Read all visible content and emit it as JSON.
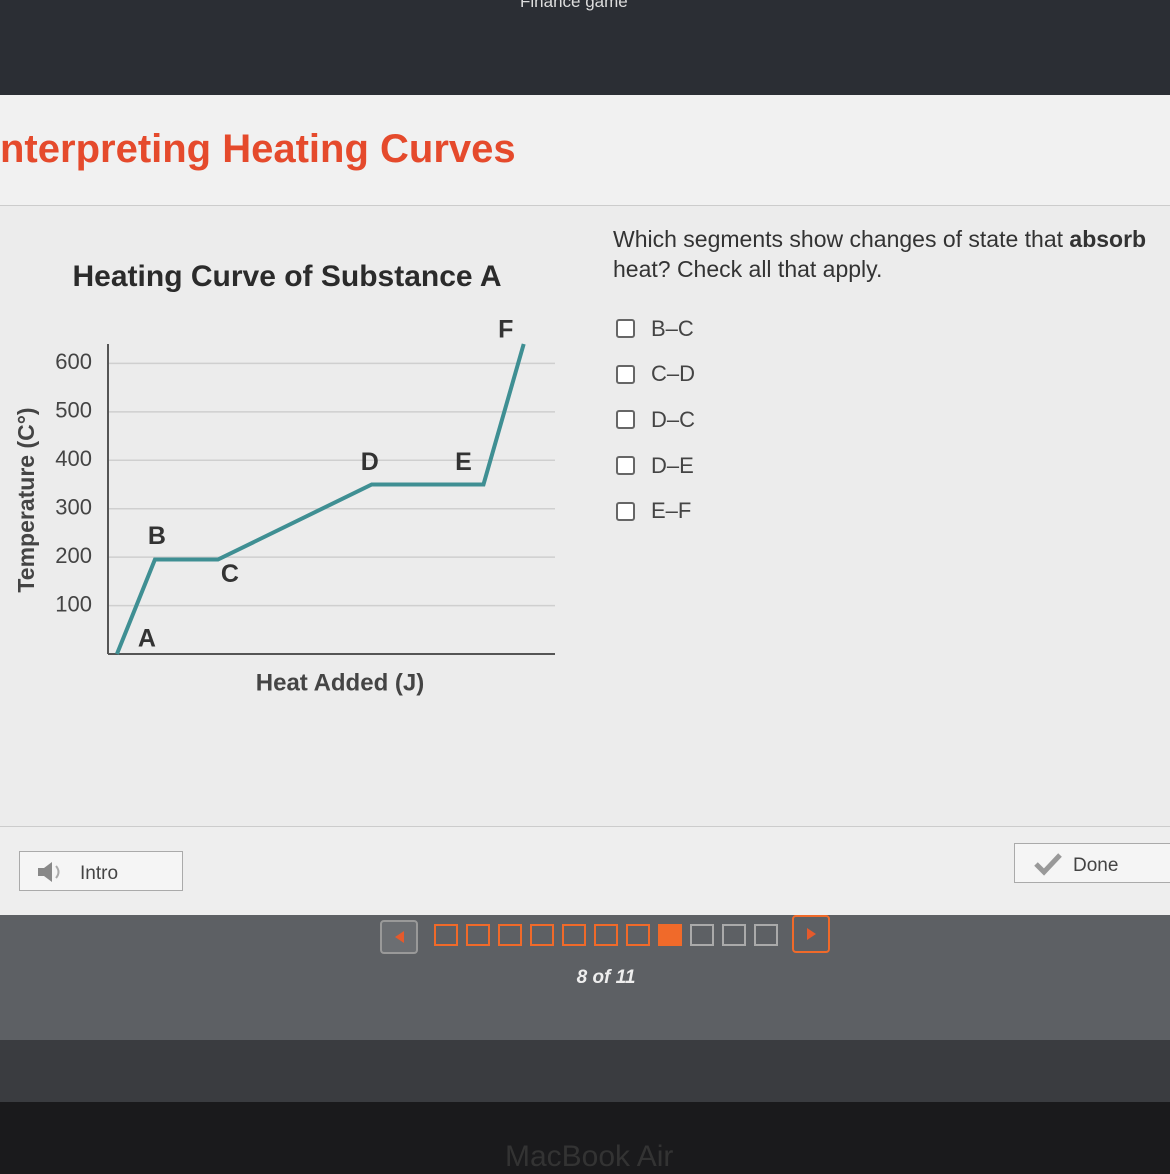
{
  "browser": {
    "bookmark": "Finance game"
  },
  "header": {
    "title": "nterpreting Heating Curves"
  },
  "chart_data": {
    "type": "line",
    "title": "Heating Curve of Substance A",
    "xlabel": "Heat Added (J)",
    "ylabel": "Temperature (C°)",
    "categories": [
      "A",
      "B",
      "C",
      "D",
      "E",
      "F"
    ],
    "x": [
      2,
      10.5,
      24.6,
      59,
      84,
      93
    ],
    "values": [
      0,
      195,
      195,
      350,
      350,
      640
    ],
    "color": "#3f8f93",
    "xlim": [
      0,
      100
    ],
    "ylim": [
      0,
      640
    ],
    "yticks": [
      100,
      200,
      300,
      400,
      500,
      600
    ],
    "grid": true
  },
  "question": {
    "parts": [
      "Which segments show changes of state that ",
      "absorb",
      " heat? Check all that apply."
    ],
    "options": [
      "B–C",
      "C–D",
      "D–C",
      "D–E",
      "E–F"
    ]
  },
  "buttons": {
    "intro": "Intro",
    "done": "Done"
  },
  "pager": {
    "label": "8 of 11"
  },
  "device": {
    "label": "MacBook Air"
  }
}
